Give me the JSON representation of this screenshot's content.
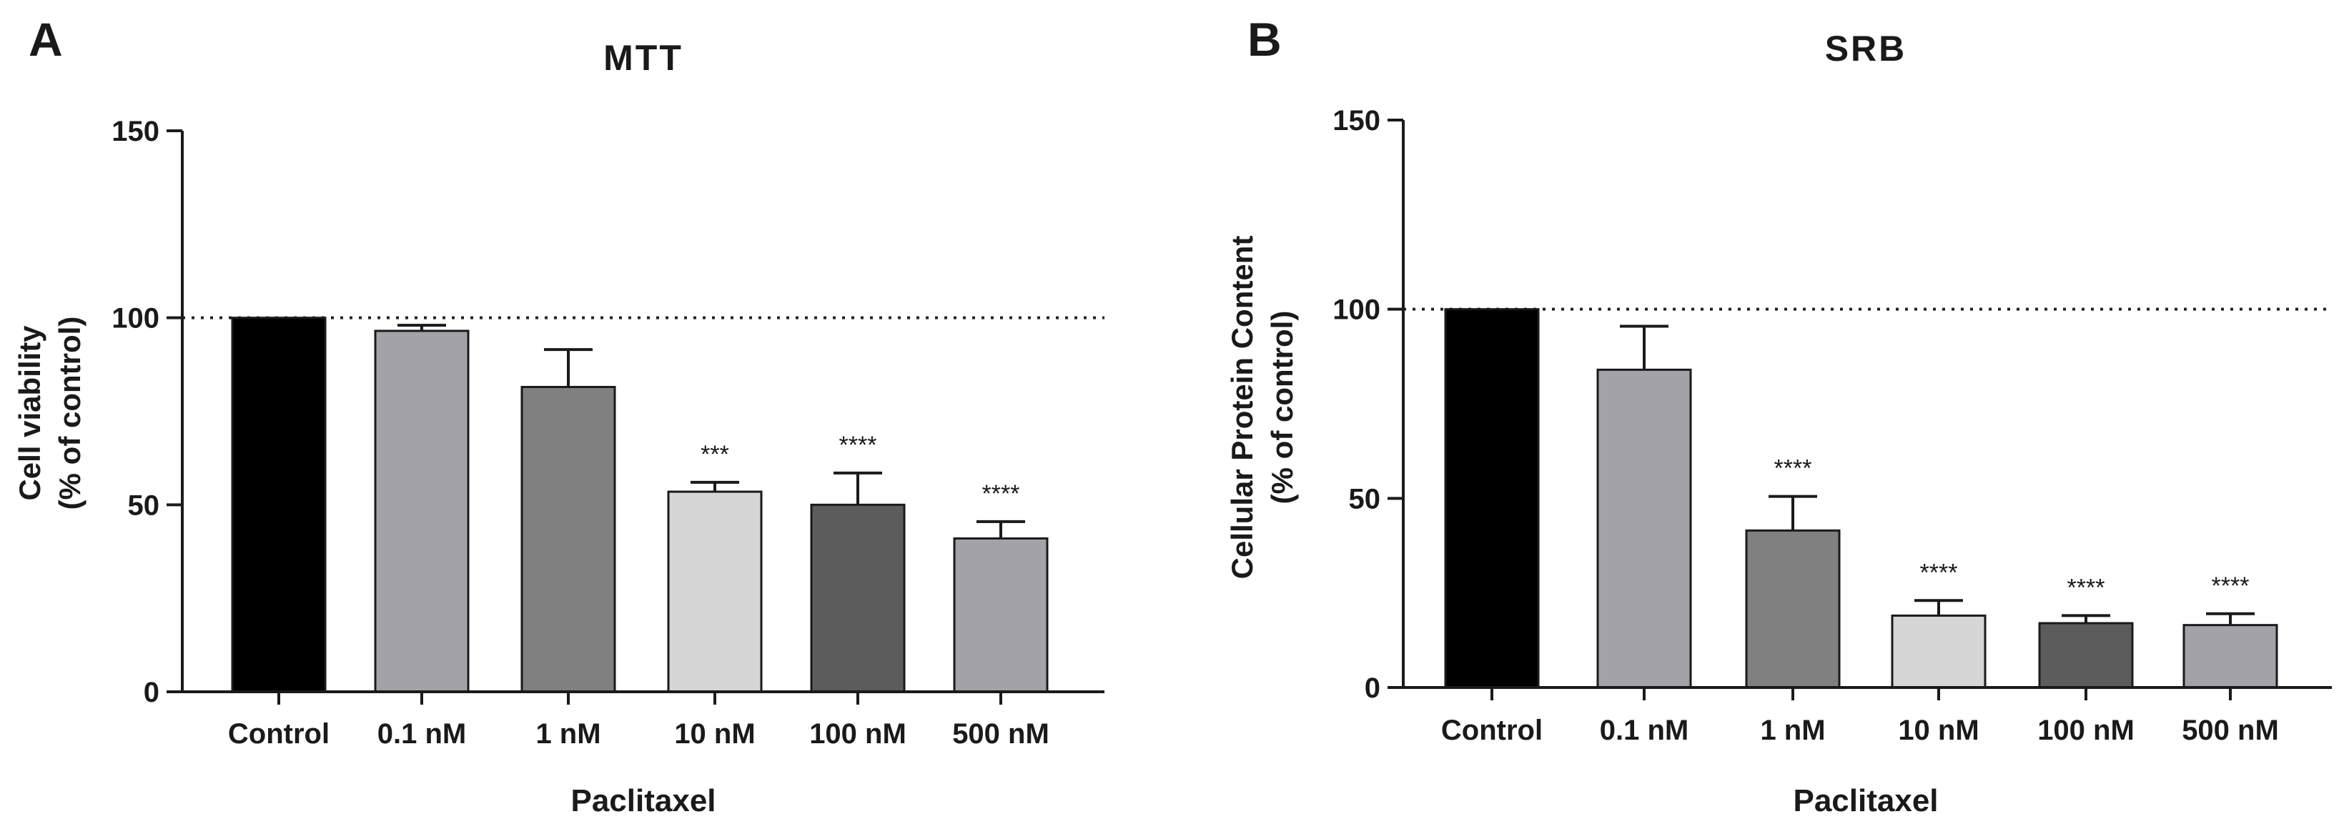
{
  "chart_data": [
    {
      "type": "bar",
      "panel": "A",
      "title": "MTT",
      "xlabel": "Paclitaxel",
      "ylabel": [
        "Cell viability",
        "(% of control)"
      ],
      "ylim": [
        0,
        150
      ],
      "yticks": [
        0,
        50,
        100,
        150
      ],
      "reference_line": 100,
      "categories": [
        "Control",
        "0.1 nM",
        "1 nM",
        "10 nM",
        "100 nM",
        "500 nM"
      ],
      "values": [
        100,
        96.5,
        81.5,
        53.5,
        50,
        41
      ],
      "errors": [
        0,
        1.5,
        10,
        2.5,
        8.5,
        4.5
      ],
      "significance": [
        "",
        "",
        "",
        "***",
        "****",
        "****"
      ],
      "colors": [
        "#000000",
        "#a3a2a8",
        "#808080",
        "#d6d6d6",
        "#5c5c5c",
        "#a3a2a8"
      ],
      "grid": false
    },
    {
      "type": "bar",
      "panel": "B",
      "title": "SRB",
      "xlabel": "Paclitaxel",
      "ylabel": [
        "Cellular Protein Content",
        "(% of control)"
      ],
      "ylim": [
        0,
        150
      ],
      "yticks": [
        0,
        50,
        100,
        150
      ],
      "reference_line": 100,
      "categories": [
        "Control",
        "0.1 nM",
        "1 nM",
        "10 nM",
        "100 nM",
        "500 nM"
      ],
      "values": [
        100,
        84,
        41.5,
        19,
        17,
        16.5
      ],
      "errors": [
        0,
        11.5,
        9,
        4,
        2,
        3
      ],
      "significance": [
        "",
        "",
        "****",
        "****",
        "****",
        "****"
      ],
      "colors": [
        "#000000",
        "#a3a2a8",
        "#808080",
        "#d6d6d6",
        "#5c5c5c",
        "#a3a2a8"
      ],
      "grid": false
    }
  ]
}
